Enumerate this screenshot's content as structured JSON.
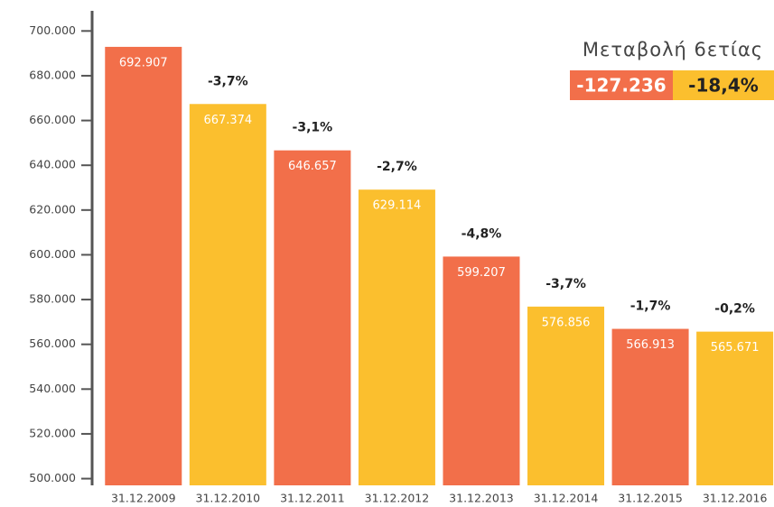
{
  "chart_data": {
    "type": "bar",
    "categories": [
      "31.12.2009",
      "31.12.2010",
      "31.12.2011",
      "31.12.2012",
      "31.12.2013",
      "31.12.2014",
      "31.12.2015",
      "31.12.2016"
    ],
    "values": [
      692907,
      667374,
      646657,
      629114,
      599207,
      576856,
      566913,
      565671
    ],
    "value_labels": [
      "692.907",
      "667.374",
      "646.657",
      "629.114",
      "599.207",
      "576.856",
      "566.913",
      "565.671"
    ],
    "colors": [
      "#f26f4a",
      "#fbbf2e",
      "#f26f4a",
      "#fbbf2e",
      "#f26f4a",
      "#fbbf2e",
      "#f26f4a",
      "#fbbf2e"
    ],
    "annotations": [
      null,
      "-3,7%",
      "-3,1%",
      "-2,7%",
      "-4,8%",
      "-3,7%",
      "-1,7%",
      "-0,2%"
    ],
    "ylim": [
      497000,
      709000
    ],
    "yticks": [
      {
        "value": 500000,
        "label": "500.000"
      },
      {
        "value": 520000,
        "label": "520.000"
      },
      {
        "value": 540000,
        "label": "540.000"
      },
      {
        "value": 560000,
        "label": "560.000"
      },
      {
        "value": 580000,
        "label": "580.000"
      },
      {
        "value": 600000,
        "label": "600.000"
      },
      {
        "value": 620000,
        "label": "620.000"
      },
      {
        "value": 640000,
        "label": "640.000"
      },
      {
        "value": 660000,
        "label": "660.000"
      },
      {
        "value": 680000,
        "label": "680.000"
      },
      {
        "value": 700000,
        "label": "700.000"
      }
    ],
    "summary": {
      "title": "Μεταβολή 6ετίας",
      "absolute": "-127.236",
      "percent": "-18,4%",
      "absolute_color": "#f26f4a",
      "percent_color": "#fbbf2e"
    }
  }
}
